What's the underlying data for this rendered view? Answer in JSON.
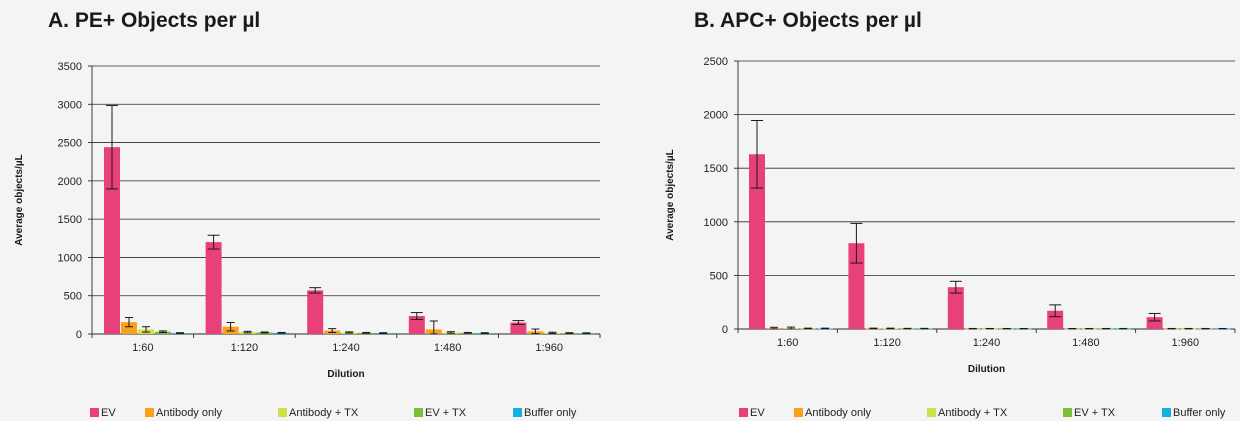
{
  "colors": {
    "EV": "#e8407a",
    "Antibody only": "#f6a21b",
    "Antibody + TX": "#cfe04a",
    "EV + TX": "#7cbf3a",
    "Buffer only": "#15b0e0"
  },
  "chart_data": [
    {
      "type": "bar",
      "title": "A. PE+ Objects per µl",
      "xlabel": "Dilution",
      "ylabel": "Average objects/µL",
      "ylim": [
        0,
        3500
      ],
      "yticks": [
        0,
        500,
        1000,
        1500,
        2000,
        2500,
        3000,
        3500
      ],
      "grid": true,
      "legend": "bottom",
      "categories": [
        "1:60",
        "1:120",
        "1:240",
        "1:480",
        "1:960"
      ],
      "series": [
        {
          "name": "EV",
          "values": [
            2440,
            1200,
            570,
            235,
            150
          ],
          "errors": [
            545,
            90,
            35,
            45,
            25
          ]
        },
        {
          "name": "Antibody only",
          "values": [
            155,
            95,
            45,
            60,
            35
          ],
          "errors": [
            60,
            55,
            25,
            110,
            30
          ]
        },
        {
          "name": "Antibody + TX",
          "values": [
            60,
            25,
            20,
            20,
            15
          ],
          "errors": [
            35,
            10,
            8,
            10,
            8
          ]
        },
        {
          "name": "EV + TX",
          "values": [
            30,
            20,
            15,
            15,
            12
          ],
          "errors": [
            10,
            6,
            5,
            5,
            5
          ]
        },
        {
          "name": "Buffer only",
          "values": [
            12,
            15,
            12,
            12,
            10
          ],
          "errors": [
            5,
            5,
            5,
            5,
            5
          ]
        }
      ]
    },
    {
      "type": "bar",
      "title": "B. APC+ Objects per µl",
      "xlabel": "Dilution",
      "ylabel": "Average objects/µL",
      "ylim": [
        0,
        2500
      ],
      "yticks": [
        0,
        500,
        1000,
        1500,
        2000,
        2500
      ],
      "grid": true,
      "legend": "bottom",
      "categories": [
        "1:60",
        "1:120",
        "1:240",
        "1:480",
        "1:960"
      ],
      "series": [
        {
          "name": "EV",
          "values": [
            1630,
            800,
            390,
            170,
            110
          ],
          "errors": [
            315,
            185,
            55,
            55,
            35
          ]
        },
        {
          "name": "Antibody only",
          "values": [
            8,
            5,
            3,
            3,
            3
          ],
          "errors": [
            8,
            3,
            2,
            2,
            2
          ]
        },
        {
          "name": "Antibody + TX",
          "values": [
            8,
            5,
            3,
            3,
            3
          ],
          "errors": [
            10,
            3,
            2,
            2,
            2
          ]
        },
        {
          "name": "EV + TX",
          "values": [
            5,
            4,
            3,
            3,
            3
          ],
          "errors": [
            3,
            2,
            2,
            2,
            2
          ]
        },
        {
          "name": "Buffer only",
          "values": [
            5,
            4,
            3,
            3,
            3
          ],
          "errors": [
            3,
            2,
            2,
            2,
            2
          ]
        }
      ]
    }
  ]
}
